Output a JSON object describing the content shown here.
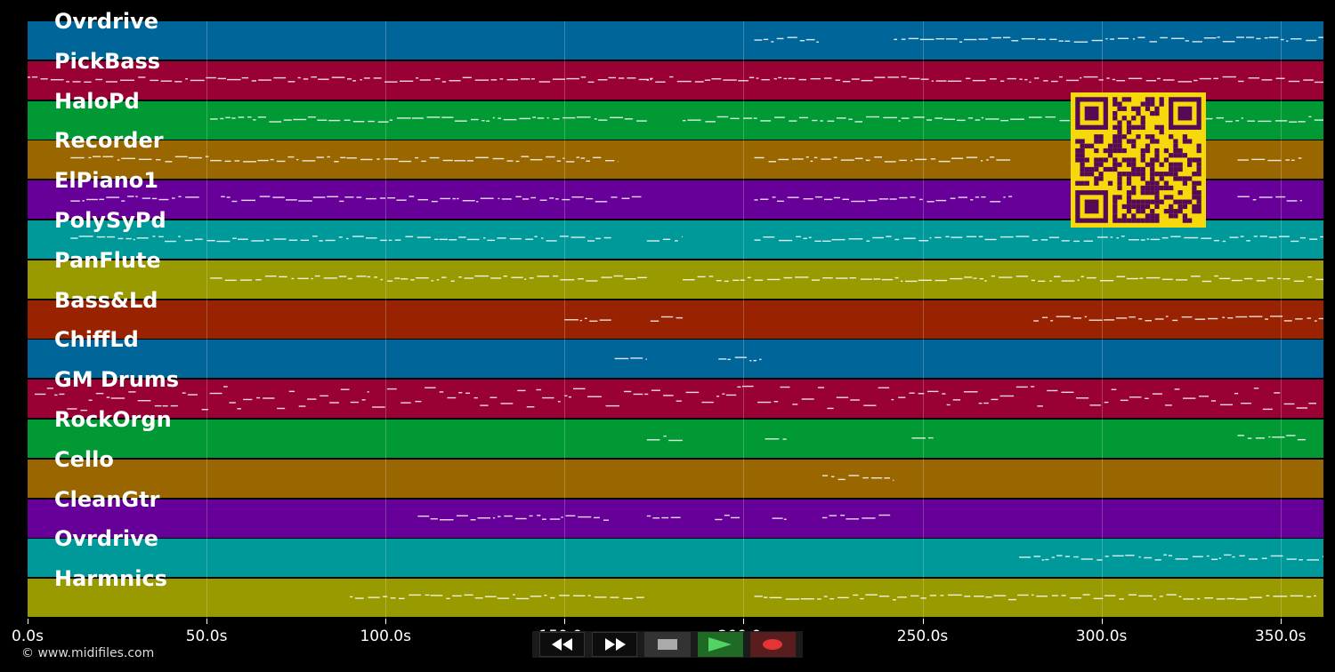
{
  "tracks": [
    {
      "name": "Ovrdrive",
      "color": "#006699"
    },
    {
      "name": "PickBass",
      "color": "#990033"
    },
    {
      "name": "HaloPd",
      "color": "#009933"
    },
    {
      "name": "Recorder",
      "color": "#996600"
    },
    {
      "name": "ElPiano1",
      "color": "#660099"
    },
    {
      "name": "PolySyPd",
      "color": "#009999"
    },
    {
      "name": "PanFlute",
      "color": "#999900"
    },
    {
      "name": "Bass&Ld",
      "color": "#992200"
    },
    {
      "name": "ChiffLd",
      "color": "#006699"
    },
    {
      "name": "GM Drums",
      "color": "#990033"
    },
    {
      "name": "RockOrgn",
      "color": "#009933"
    },
    {
      "name": "Cello",
      "color": "#996600"
    },
    {
      "name": "CleanGtr",
      "color": "#660099"
    },
    {
      "name": "Ovrdrive",
      "color": "#009999"
    },
    {
      "name": "Harmnics",
      "color": "#999900"
    }
  ],
  "timeline": {
    "ticks": [
      "0.0s",
      "50.0s",
      "100.0s",
      "150.0s",
      "200.0s",
      "250.0s",
      "300.0s",
      "350.0s"
    ],
    "tick_seconds": [
      0,
      50,
      100,
      150,
      200,
      250,
      300,
      350
    ],
    "x_range_seconds": [
      0,
      362
    ]
  },
  "note_segments": [
    {
      "track": 0,
      "start": 203,
      "end": 222
    },
    {
      "track": 0,
      "start": 242,
      "end": 362
    },
    {
      "track": 1,
      "start": 0,
      "end": 175
    },
    {
      "track": 1,
      "start": 173,
      "end": 362
    },
    {
      "track": 2,
      "start": 51,
      "end": 173
    },
    {
      "track": 2,
      "start": 183,
      "end": 362
    },
    {
      "track": 3,
      "start": 12,
      "end": 165
    },
    {
      "track": 3,
      "start": 203,
      "end": 275
    },
    {
      "track": 3,
      "start": 338,
      "end": 356
    },
    {
      "track": 4,
      "start": 12,
      "end": 48
    },
    {
      "track": 4,
      "start": 54,
      "end": 172
    },
    {
      "track": 4,
      "start": 203,
      "end": 275
    },
    {
      "track": 4,
      "start": 338,
      "end": 356
    },
    {
      "track": 5,
      "start": 12,
      "end": 163
    },
    {
      "track": 5,
      "start": 173,
      "end": 183
    },
    {
      "track": 5,
      "start": 203,
      "end": 362
    },
    {
      "track": 6,
      "start": 51,
      "end": 173
    },
    {
      "track": 6,
      "start": 183,
      "end": 362
    },
    {
      "track": 7,
      "start": 150,
      "end": 164
    },
    {
      "track": 7,
      "start": 174,
      "end": 183
    },
    {
      "track": 7,
      "start": 281,
      "end": 362
    },
    {
      "track": 8,
      "start": 164,
      "end": 173
    },
    {
      "track": 8,
      "start": 193,
      "end": 205
    },
    {
      "track": 9,
      "start": 2,
      "end": 360
    },
    {
      "track": 10,
      "start": 173,
      "end": 183
    },
    {
      "track": 10,
      "start": 206,
      "end": 212
    },
    {
      "track": 10,
      "start": 247,
      "end": 253
    },
    {
      "track": 10,
      "start": 338,
      "end": 357
    },
    {
      "track": 11,
      "start": 222,
      "end": 242
    },
    {
      "track": 12,
      "start": 109,
      "end": 163
    },
    {
      "track": 12,
      "start": 173,
      "end": 183
    },
    {
      "track": 12,
      "start": 192,
      "end": 199
    },
    {
      "track": 12,
      "start": 208,
      "end": 212
    },
    {
      "track": 12,
      "start": 222,
      "end": 242
    },
    {
      "track": 13,
      "start": 277,
      "end": 362
    },
    {
      "track": 14,
      "start": 90,
      "end": 173
    },
    {
      "track": 14,
      "start": 203,
      "end": 360
    }
  ],
  "copyright": "© www.midifiles.com",
  "controls": {
    "rewind": "rewind-icon",
    "fast_forward": "fast-forward-icon",
    "stop": "stop-icon",
    "play": "play-icon",
    "record": "record-icon"
  },
  "qr_code": "qr-code"
}
